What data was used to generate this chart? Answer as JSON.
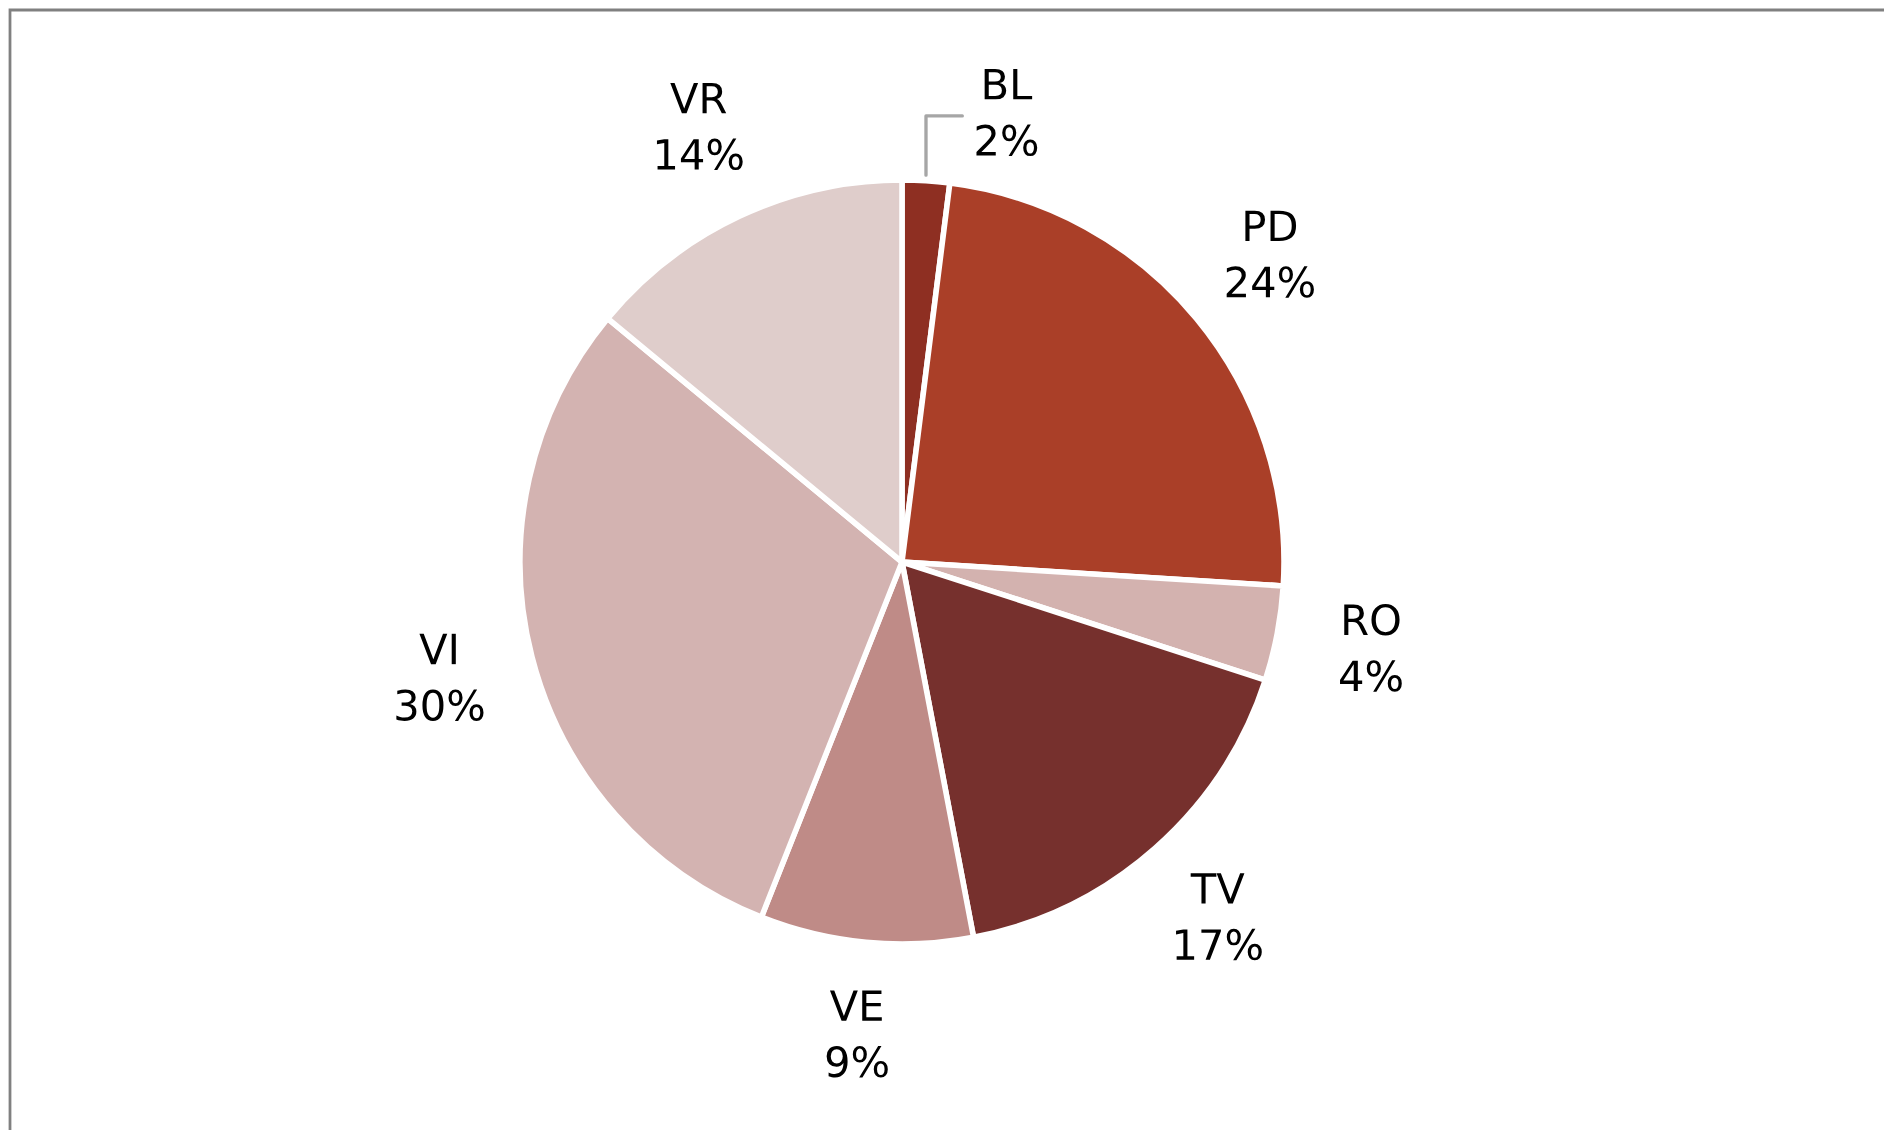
{
  "chart_data": {
    "type": "pie",
    "categories": [
      "BL",
      "PD",
      "RO",
      "TV",
      "VE",
      "VI",
      "VR"
    ],
    "values": [
      2,
      24,
      4,
      17,
      9,
      30,
      14
    ],
    "value_labels": [
      "2%",
      "24%",
      "4%",
      "17%",
      "9%",
      "30%",
      "14%"
    ],
    "colors": [
      "#8e2f22",
      "#aa3f28",
      "#d3b2af",
      "#76302d",
      "#bf8b87",
      "#d3b3b1",
      "#dfcdcb"
    ],
    "legend": false
  }
}
